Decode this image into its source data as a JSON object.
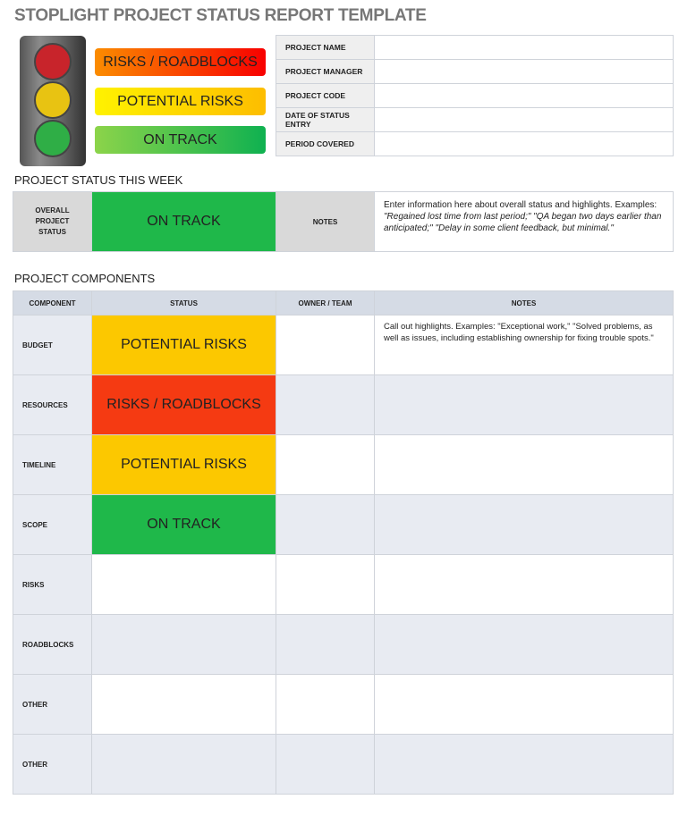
{
  "title": "STOPLIGHT PROJECT STATUS REPORT TEMPLATE",
  "legend": {
    "red": "RISKS / ROADBLOCKS",
    "yellow": "POTENTIAL RISKS",
    "green": "ON TRACK"
  },
  "colors": {
    "red": "#f53a12",
    "yellow": "#fcc800",
    "green": "#1fb84a"
  },
  "project_info": [
    {
      "label": "PROJECT NAME",
      "value": ""
    },
    {
      "label": "PROJECT MANAGER",
      "value": ""
    },
    {
      "label": "PROJECT CODE",
      "value": ""
    },
    {
      "label": "DATE OF STATUS ENTRY",
      "value": ""
    },
    {
      "label": "PERIOD COVERED",
      "value": ""
    }
  ],
  "status_week": {
    "heading": "PROJECT STATUS THIS WEEK",
    "label": "OVERALL PROJECT STATUS",
    "status": "ON TRACK",
    "notes_label": "NOTES",
    "notes_intro": "Enter information here about overall status and highlights. Examples: ",
    "notes_examples": "\"Regained lost time from last period;\" \"QA began two days earlier than anticipated;\" \"Delay in some client feedback, but minimal.\""
  },
  "components": {
    "heading": "PROJECT COMPONENTS",
    "columns": [
      "COMPONENT",
      "STATUS",
      "OWNER / TEAM",
      "NOTES"
    ],
    "rows": [
      {
        "component": "BUDGET",
        "status": "POTENTIAL RISKS",
        "owner": "",
        "notes": "Call out highlights. Examples: \"Exceptional work,\" \"Solved problems, as well as issues, including establishing ownership for fixing trouble spots.\""
      },
      {
        "component": "RESOURCES",
        "status": "RISKS / ROADBLOCKS",
        "owner": "",
        "notes": ""
      },
      {
        "component": "TIMELINE",
        "status": "POTENTIAL RISKS",
        "owner": "",
        "notes": ""
      },
      {
        "component": "SCOPE",
        "status": "ON TRACK",
        "owner": "",
        "notes": ""
      },
      {
        "component": "RISKS",
        "status": "",
        "owner": "",
        "notes": ""
      },
      {
        "component": "ROADBLOCKS",
        "status": "",
        "owner": "",
        "notes": ""
      },
      {
        "component": "OTHER",
        "status": "",
        "owner": "",
        "notes": ""
      },
      {
        "component": "OTHER",
        "status": "",
        "owner": "",
        "notes": ""
      }
    ]
  }
}
